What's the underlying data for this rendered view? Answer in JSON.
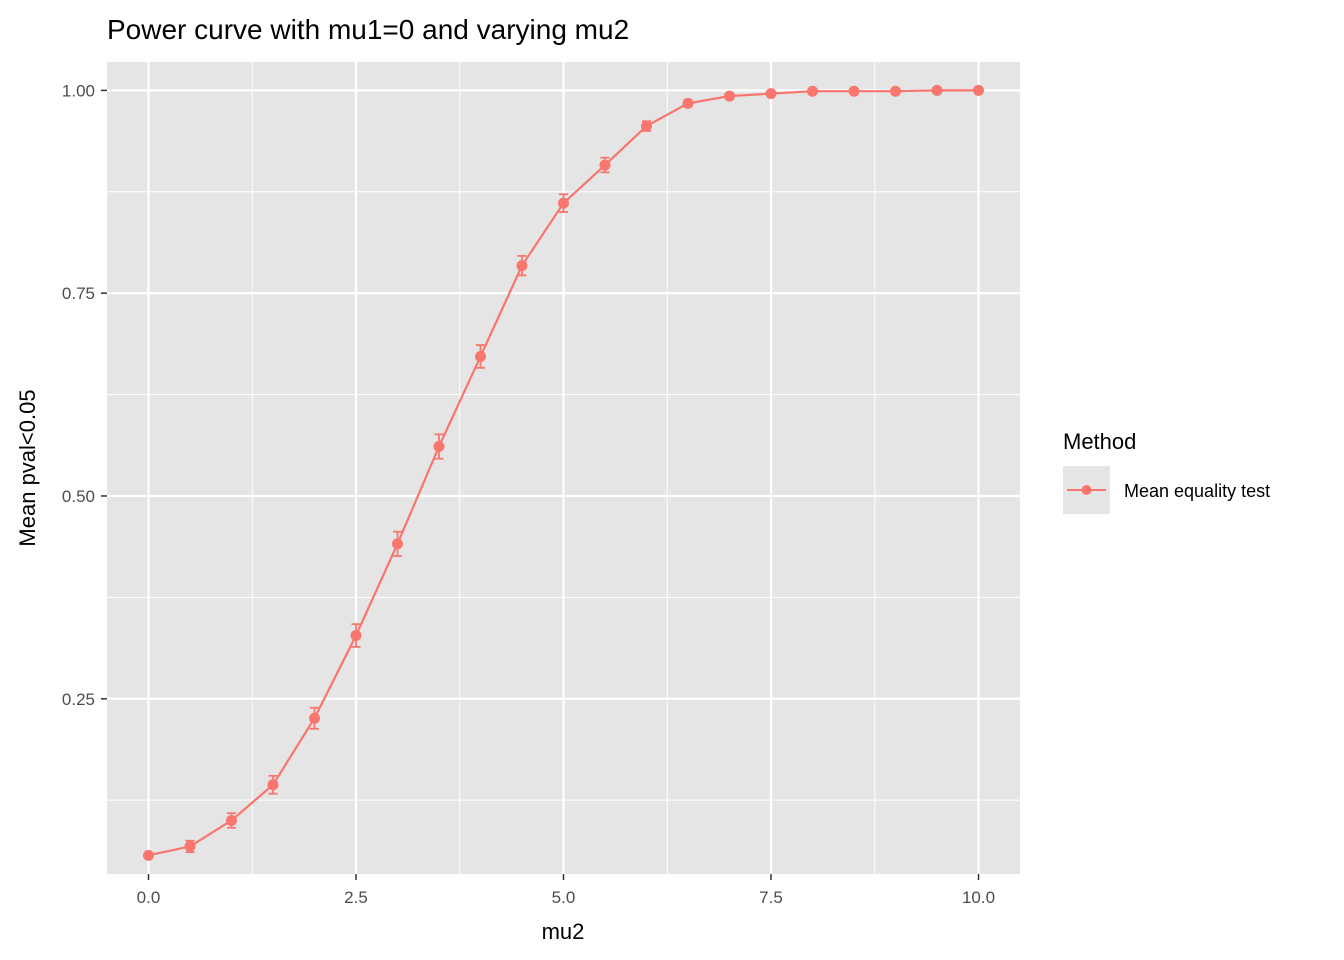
{
  "chart_data": {
    "type": "line",
    "title": "Power curve with mu1=0 and varying mu2",
    "xlabel": "mu2",
    "ylabel": "Mean pval<0.05",
    "xlim": [
      -0.5,
      10.5
    ],
    "ylim": [
      0.034,
      1.035
    ],
    "x_ticks": [
      0,
      2.5,
      5,
      7.5,
      10
    ],
    "x_tick_labels": [
      "0.0",
      "2.5",
      "5.0",
      "7.5",
      "10.0"
    ],
    "y_ticks": [
      0.25,
      0.5,
      0.75,
      1.0
    ],
    "y_tick_labels": [
      "0.25",
      "0.50",
      "0.75",
      "1.00"
    ],
    "x_minor": [
      1.25,
      3.75,
      6.25,
      8.75
    ],
    "y_minor": [
      0.125,
      0.375,
      0.625,
      0.875
    ],
    "grid": true,
    "background_color": "#e5e5e5",
    "legend": {
      "title": "Method",
      "placement": "right"
    },
    "series": [
      {
        "name": "Mean equality test",
        "color": "#f8766d",
        "x": [
          0,
          0.5,
          1,
          1.5,
          2,
          2.5,
          3,
          3.5,
          4,
          4.5,
          5,
          5.5,
          6,
          6.5,
          7,
          7.5,
          8,
          8.5,
          9,
          9.5,
          10
        ],
        "y": [
          0.057,
          0.068,
          0.1,
          0.144,
          0.226,
          0.328,
          0.441,
          0.561,
          0.672,
          0.784,
          0.861,
          0.908,
          0.956,
          0.984,
          0.993,
          0.996,
          0.999,
          0.999,
          0.999,
          1.0,
          1.0
        ],
        "error": [
          0.002,
          0.007,
          0.009,
          0.011,
          0.013,
          0.014,
          0.015,
          0.015,
          0.014,
          0.012,
          0.011,
          0.009,
          0.006,
          0.004,
          0.003,
          0.002,
          0.001,
          0.001,
          0.001,
          0.0,
          0.0
        ]
      }
    ]
  }
}
